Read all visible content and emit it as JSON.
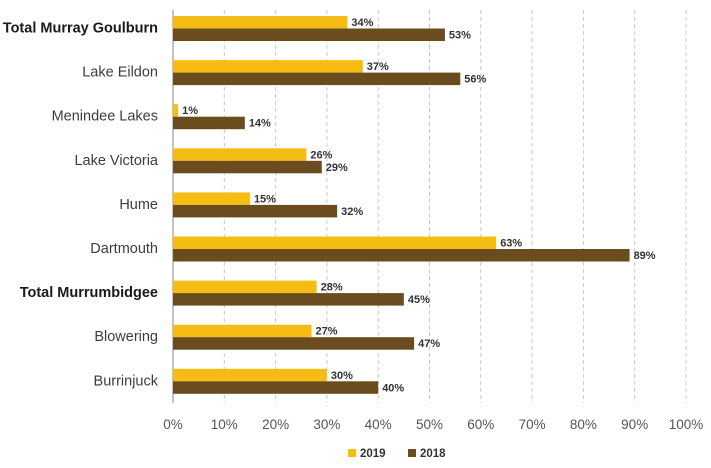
{
  "chart_data": {
    "type": "bar",
    "orientation": "horizontal",
    "categories": [
      "Total Murray Goulburn",
      "Lake Eildon",
      "Menindee Lakes",
      "Lake Victoria",
      "Hume",
      "Dartmouth",
      "Total Murrumbidgee",
      "Blowering",
      "Burrinjuck"
    ],
    "bold_categories": [
      "Total Murray Goulburn",
      "Total Murrumbidgee"
    ],
    "series": [
      {
        "name": "2019",
        "color": "#f5bd14",
        "values": [
          34,
          37,
          1,
          26,
          15,
          63,
          28,
          27,
          30
        ],
        "labels": [
          "34%",
          "37%",
          "1%",
          "26%",
          "15%",
          "63%",
          "28%",
          "27%",
          "30%"
        ]
      },
      {
        "name": "2018",
        "color": "#6b4c1e",
        "values": [
          53,
          56,
          14,
          29,
          32,
          89,
          45,
          47,
          40
        ],
        "labels": [
          "53%",
          "56%",
          "14%",
          "29%",
          "32%",
          "89%",
          "45%",
          "47%",
          "40%"
        ]
      }
    ],
    "xlim": [
      0,
      100
    ],
    "xticks": [
      0,
      10,
      20,
      30,
      40,
      50,
      60,
      70,
      80,
      90,
      100
    ],
    "xtick_labels": [
      "0%",
      "10%",
      "20%",
      "30%",
      "40%",
      "50%",
      "60%",
      "70%",
      "80%",
      "90%",
      "100%"
    ],
    "grid": true,
    "legend_position": "bottom-center",
    "title": "",
    "xlabel": "",
    "ylabel": ""
  }
}
